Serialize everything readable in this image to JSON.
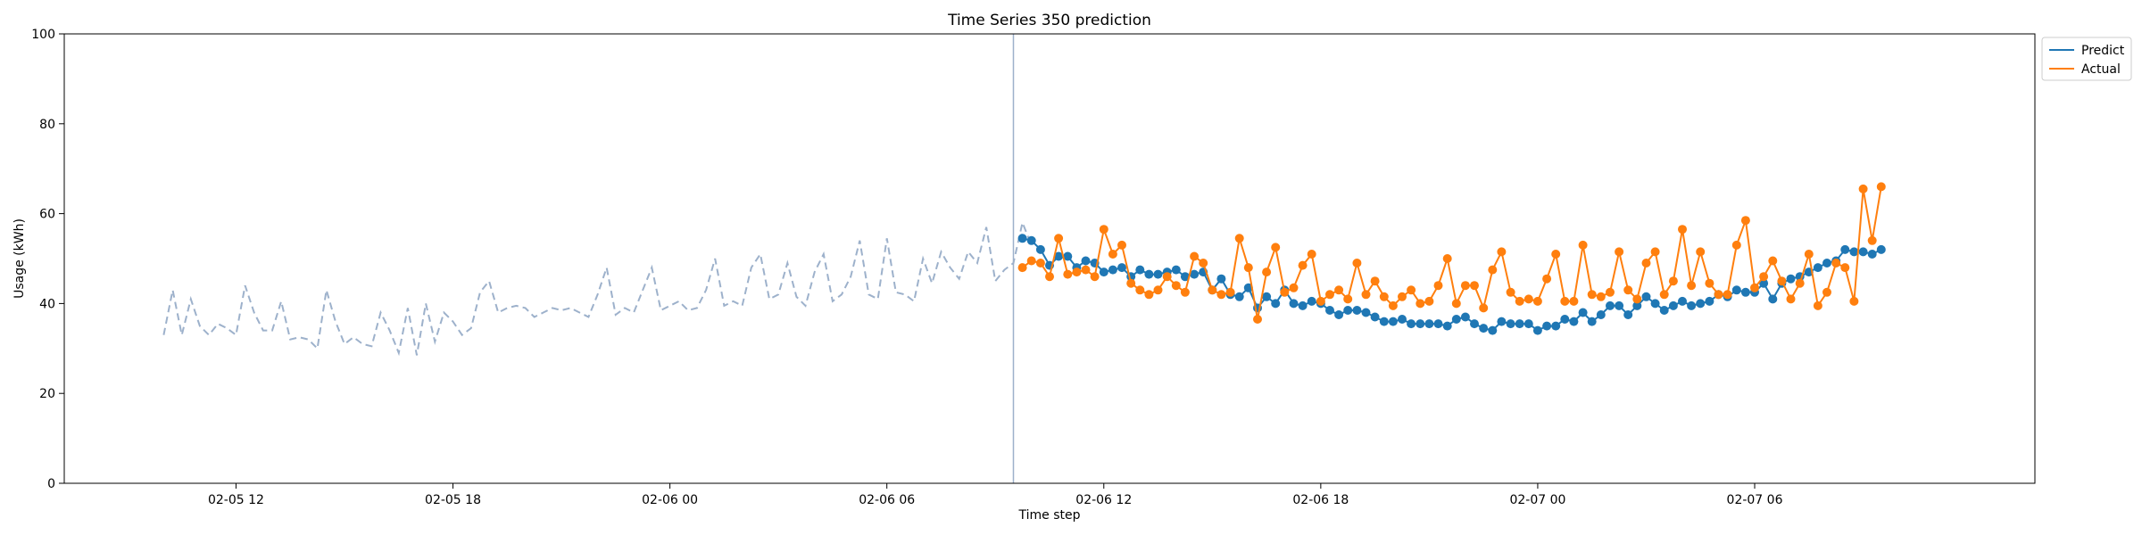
{
  "chart_data": {
    "type": "line",
    "title": "Time Series 350 prediction",
    "xlabel": "Time step",
    "ylabel": "Usage (kWh)",
    "ylim": [
      0,
      100
    ],
    "yticks": [
      "0",
      "20",
      "40",
      "60",
      "80",
      "100"
    ],
    "xticks": [
      {
        "x": "2021-02-05 12:00",
        "label": "02-05 12"
      },
      {
        "x": "2021-02-05 18:00",
        "label": "02-05 18"
      },
      {
        "x": "2021-02-06 00:00",
        "label": "02-06 00"
      },
      {
        "x": "2021-02-06 06:00",
        "label": "02-06 06"
      },
      {
        "x": "2021-02-06 12:00",
        "label": "02-06 12"
      },
      {
        "x": "2021-02-06 18:00",
        "label": "02-06 18"
      },
      {
        "x": "2021-02-07 00:00",
        "label": "02-07 00"
      },
      {
        "x": "2021-02-07 06:00",
        "label": "02-07 06"
      }
    ],
    "xlim": [
      "2021-02-05 07:15",
      "2021-02-07 13:45"
    ],
    "legend": {
      "placement": "upper-right-outside",
      "entries": [
        "Predict",
        "Actual"
      ]
    },
    "grid": false,
    "colors": {
      "history": "#9db1cb",
      "predict": "#1f77b4",
      "actual": "#ff7f0e",
      "divider": "#9db1cb"
    },
    "interval_minutes": 15,
    "divider_x": "2021-02-06 09:30",
    "history": {
      "start": "2021-02-05 10:00",
      "values": [
        33,
        43,
        33,
        41,
        35,
        33,
        35.5,
        34.5,
        33,
        44,
        38,
        34,
        34,
        40.5,
        32,
        32.5,
        32,
        30,
        43,
        36,
        31,
        32.5,
        31,
        30.5,
        38,
        34,
        29,
        39,
        28.5,
        40,
        31.5,
        38,
        36,
        33,
        34.5,
        42.5,
        45,
        38,
        39,
        39.5,
        39,
        37,
        38,
        39,
        38.5,
        39,
        38,
        37,
        42,
        48,
        37.5,
        39,
        38,
        43,
        48,
        38.5,
        39.5,
        40.5,
        38.5,
        39,
        43,
        50,
        39.5,
        40.5,
        39.5,
        48,
        51,
        41,
        42,
        49,
        41.5,
        39.5,
        47,
        51,
        40.5,
        42,
        46,
        54,
        42,
        41,
        54.5,
        42.5,
        42,
        40.5,
        50,
        44.5,
        51.5,
        48,
        45.5,
        51.5,
        49,
        57,
        45,
        47.5,
        49,
        58,
        53
      ]
    },
    "predict": {
      "start": "2021-02-06 09:45",
      "values": [
        54.5,
        54,
        52,
        48.5,
        50.5,
        50.5,
        48,
        49.5,
        49,
        47,
        47.5,
        48,
        46,
        47.5,
        46.5,
        46.5,
        47,
        47.5,
        46,
        46.5,
        47,
        43,
        45.5,
        42,
        41.5,
        43.5,
        39,
        41.5,
        40,
        43,
        40,
        39.5,
        40.5,
        40,
        38.5,
        37.5,
        38.5,
        38.5,
        38,
        37,
        36,
        36,
        36.5,
        35.5,
        35.5,
        35.5,
        35.5,
        35,
        36.5,
        37,
        35.5,
        34.5,
        34,
        36,
        35.5,
        35.5,
        35.5,
        34,
        35,
        35,
        36.5,
        36,
        38,
        36,
        37.5,
        39.5,
        39.5,
        37.5,
        39.5,
        41.5,
        40,
        38.5,
        39.5,
        40.5,
        39.5,
        40,
        40.5,
        42,
        41.5,
        43,
        42.5,
        42.5,
        44.5,
        41,
        44.5,
        45.5,
        46,
        47,
        48,
        49,
        49.5,
        52,
        51.5,
        51.5,
        51,
        52
      ]
    },
    "actual": {
      "start": "2021-02-06 09:45",
      "values": [
        48,
        49.5,
        49,
        46,
        54.5,
        46.5,
        47,
        47.5,
        46,
        56.5,
        51,
        53,
        44.5,
        43,
        42,
        43,
        46,
        44,
        42.5,
        50.5,
        49,
        43,
        42,
        42.5,
        54.5,
        48,
        36.5,
        47,
        52.5,
        42.5,
        43.5,
        48.5,
        51,
        40.5,
        42,
        43,
        41,
        49,
        42,
        45,
        41.5,
        39.5,
        41.5,
        43,
        40,
        40.5,
        44,
        50,
        40,
        44,
        44,
        39,
        47.5,
        51.5,
        42.5,
        40.5,
        41,
        40.5,
        45.5,
        51,
        40.5,
        40.5,
        53,
        42,
        41.5,
        42.5,
        51.5,
        43,
        41,
        49,
        51.5,
        42,
        45,
        56.5,
        44,
        51.5,
        44.5,
        42,
        42,
        53,
        58.5,
        43.5,
        46,
        49.5,
        45,
        41,
        44.5,
        51,
        39.5,
        42.5,
        49,
        48,
        40.5,
        65.5,
        54,
        66
      ]
    }
  }
}
